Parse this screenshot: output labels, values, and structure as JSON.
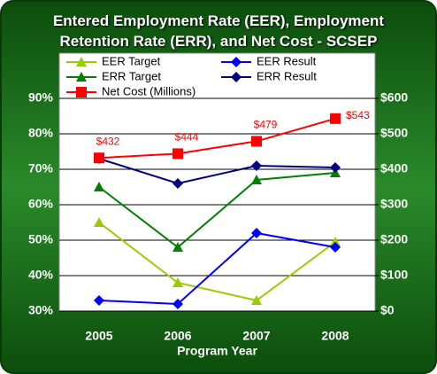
{
  "chart_data": {
    "type": "line",
    "title": "Entered Employment Rate (EER), Employment Retention Rate (ERR), and Net Cost - SCSEP",
    "x_label": "Program Year",
    "categories": [
      "2005",
      "2006",
      "2007",
      "2008"
    ],
    "ylim": [
      30,
      90
    ],
    "yticks": [
      {
        "value": 30,
        "label": "30%"
      },
      {
        "value": 40,
        "label": "40%"
      },
      {
        "value": 50,
        "label": "50%"
      },
      {
        "value": 60,
        "label": "60%"
      },
      {
        "value": 70,
        "label": "70%"
      },
      {
        "value": 80,
        "label": "80%"
      },
      {
        "value": 90,
        "label": "90%"
      }
    ],
    "y2lim": [
      0,
      600
    ],
    "y2ticks": [
      {
        "value": 0,
        "label": "$0"
      },
      {
        "value": 100,
        "label": "$100"
      },
      {
        "value": 200,
        "label": "$200"
      },
      {
        "value": 300,
        "label": "$300"
      },
      {
        "value": 400,
        "label": "$400"
      },
      {
        "value": 500,
        "label": "$500"
      },
      {
        "value": 600,
        "label": "$600"
      }
    ],
    "grid": true,
    "series": [
      {
        "name": "EER Target",
        "color": "#99cc00",
        "marker": "triangle",
        "values": [
          55,
          38,
          33,
          49.5
        ]
      },
      {
        "name": "EER Result",
        "color": "#0000ff",
        "marker": "diamond",
        "values": [
          33,
          32,
          52,
          48
        ]
      },
      {
        "name": "ERR Target",
        "color": "#008000",
        "marker": "triangle",
        "values": [
          65,
          48,
          67,
          69
        ]
      },
      {
        "name": "ERR Result",
        "color": "#000080",
        "marker": "diamond",
        "values": [
          73,
          66,
          71,
          70.5
        ]
      },
      {
        "name": "Net Cost (Millions)",
        "color": "#ff0000",
        "marker": "square",
        "axis": "y2",
        "values": [
          432,
          444,
          479,
          543
        ],
        "value_labels": [
          "$432",
          "$444",
          "$479",
          "$543"
        ]
      }
    ]
  }
}
